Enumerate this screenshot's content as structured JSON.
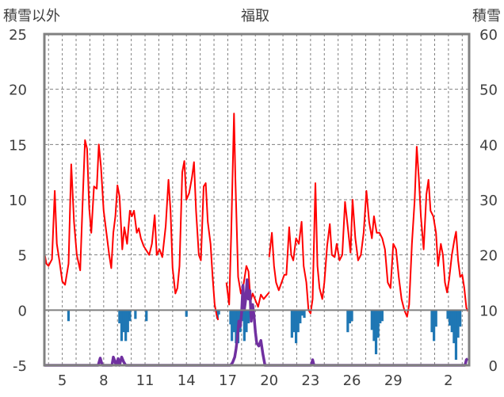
{
  "chart_data": {
    "type": "line",
    "title": "福取",
    "ylabel_left": "積雪以外",
    "ylabel_right": "積雪",
    "left_axis": {
      "min": -5,
      "max": 25,
      "ticks": [
        "25",
        "20",
        "15",
        "10",
        "5",
        "0",
        "-5"
      ],
      "tick_values": [
        25,
        20,
        15,
        10,
        5,
        0,
        -5
      ]
    },
    "right_axis": {
      "min": 0,
      "max": 60,
      "ticks": [
        "60",
        "50",
        "40",
        "30",
        "20",
        "10",
        "0"
      ],
      "tick_values": [
        60,
        50,
        40,
        30,
        20,
        10,
        0
      ]
    },
    "x_ticks": [
      "5",
      "8",
      "11",
      "14",
      "17",
      "20",
      "23",
      "26",
      "29",
      "2"
    ],
    "x_tick_days": [
      5,
      8,
      11,
      14,
      17,
      20,
      23,
      26,
      29,
      33
    ],
    "x_range": [
      3.7,
      34.5
    ],
    "grid": true,
    "colors": {
      "temperature": "#ff0000",
      "precipitation": "#1f77b4",
      "snow_depth": "#7030a0",
      "grid": "#808080",
      "frame": "#808080"
    },
    "series": [
      {
        "type": "line",
        "color": "#ff0000",
        "points": [
          [
            3.7,
            5.2
          ],
          [
            3.85,
            4.2
          ],
          [
            4.0,
            4.0
          ],
          [
            4.25,
            4.6
          ],
          [
            4.45,
            10.8
          ],
          [
            4.6,
            6.0
          ],
          [
            4.8,
            4.4
          ],
          [
            5.0,
            2.6
          ],
          [
            5.2,
            2.3
          ],
          [
            5.45,
            4.2
          ],
          [
            5.65,
            13.2
          ],
          [
            5.85,
            8.0
          ],
          [
            6.05,
            5.0
          ],
          [
            6.3,
            3.6
          ],
          [
            6.5,
            10.6
          ],
          [
            6.65,
            15.4
          ],
          [
            6.8,
            14.6
          ],
          [
            6.95,
            9.2
          ],
          [
            7.1,
            7.0
          ],
          [
            7.3,
            11.2
          ],
          [
            7.5,
            11.0
          ],
          [
            7.65,
            15.0
          ],
          [
            7.8,
            13.0
          ],
          [
            8.0,
            9.0
          ],
          [
            8.2,
            7.0
          ],
          [
            8.4,
            5.0
          ],
          [
            8.55,
            3.8
          ],
          [
            8.7,
            7.0
          ],
          [
            8.85,
            8.5
          ],
          [
            9.0,
            11.3
          ],
          [
            9.15,
            10.3
          ],
          [
            9.35,
            5.5
          ],
          [
            9.5,
            7.5
          ],
          [
            9.7,
            6.0
          ],
          [
            9.9,
            9.0
          ],
          [
            10.05,
            8.5
          ],
          [
            10.2,
            9.0
          ],
          [
            10.4,
            7.0
          ],
          [
            10.55,
            7.4
          ],
          [
            10.7,
            6.5
          ],
          [
            10.9,
            5.8
          ],
          [
            11.1,
            5.4
          ],
          [
            11.3,
            5.0
          ],
          [
            11.5,
            6.0
          ],
          [
            11.7,
            8.6
          ],
          [
            11.85,
            5.0
          ],
          [
            12.05,
            5.5
          ],
          [
            12.25,
            4.8
          ],
          [
            12.5,
            7.6
          ],
          [
            12.7,
            11.8
          ],
          [
            12.85,
            9.0
          ],
          [
            13.0,
            3.8
          ],
          [
            13.2,
            1.5
          ],
          [
            13.35,
            2.0
          ],
          [
            13.5,
            4.0
          ],
          [
            13.7,
            12.5
          ],
          [
            13.85,
            13.5
          ],
          [
            14.0,
            10.0
          ],
          [
            14.2,
            10.6
          ],
          [
            14.4,
            12.0
          ],
          [
            14.55,
            13.4
          ],
          [
            14.7,
            9.0
          ],
          [
            14.9,
            5.0
          ],
          [
            15.05,
            4.5
          ],
          [
            15.25,
            11.2
          ],
          [
            15.4,
            11.5
          ],
          [
            15.55,
            8.0
          ],
          [
            15.75,
            6.0
          ],
          [
            15.9,
            3.0
          ],
          [
            16.05,
            0.5
          ],
          [
            16.2,
            -0.5
          ],
          [
            16.3,
            -0.9
          ]
        ],
        "name": ""
      },
      {
        "type": "line",
        "color": "#ff0000",
        "points": [
          [
            16.9,
            2.5
          ],
          [
            17.1,
            0.5
          ],
          [
            17.25,
            7.0
          ],
          [
            17.45,
            17.8
          ],
          [
            17.55,
            12.0
          ],
          [
            17.75,
            3.0
          ],
          [
            17.95,
            1.5
          ],
          [
            18.15,
            2.4
          ],
          [
            18.35,
            4.0
          ],
          [
            18.5,
            3.5
          ],
          [
            18.65,
            0.8
          ],
          [
            18.8,
            1.5
          ],
          [
            19.0,
            0.9
          ],
          [
            19.2,
            0.3
          ],
          [
            19.4,
            1.4
          ],
          [
            19.6,
            1.0
          ],
          [
            19.8,
            1.3
          ],
          [
            20.0,
            1.6
          ]
        ],
        "name": ""
      },
      {
        "type": "line",
        "color": "#ff0000",
        "points": [
          [
            20.0,
            4.8
          ],
          [
            20.2,
            7.0
          ],
          [
            20.35,
            4.0
          ],
          [
            20.5,
            2.5
          ],
          [
            20.7,
            1.8
          ],
          [
            20.9,
            2.5
          ],
          [
            21.1,
            3.2
          ],
          [
            21.25,
            3.2
          ],
          [
            21.45,
            7.5
          ],
          [
            21.6,
            5.0
          ],
          [
            21.75,
            4.5
          ],
          [
            21.95,
            6.5
          ],
          [
            22.15,
            6.0
          ],
          [
            22.35,
            8.0
          ],
          [
            22.5,
            4.0
          ],
          [
            22.7,
            2.5
          ],
          [
            22.85,
            0.0
          ],
          [
            23.0,
            -0.3
          ],
          [
            23.15,
            1.0
          ],
          [
            23.35,
            11.5
          ],
          [
            23.5,
            4.0
          ],
          [
            23.65,
            2.0
          ],
          [
            23.85,
            1.0
          ],
          [
            24.0,
            2.5
          ],
          [
            24.2,
            5.8
          ],
          [
            24.4,
            7.8
          ],
          [
            24.55,
            5.0
          ],
          [
            24.75,
            4.8
          ],
          [
            24.9,
            6.0
          ],
          [
            25.1,
            4.5
          ],
          [
            25.3,
            5.0
          ],
          [
            25.5,
            9.8
          ],
          [
            25.7,
            7.5
          ],
          [
            25.9,
            5.2
          ],
          [
            26.05,
            10.0
          ],
          [
            26.25,
            6.5
          ],
          [
            26.45,
            4.5
          ],
          [
            26.65,
            5.0
          ],
          [
            26.85,
            7.0
          ],
          [
            27.05,
            10.8
          ],
          [
            27.25,
            8.0
          ],
          [
            27.45,
            6.5
          ],
          [
            27.6,
            8.5
          ],
          [
            27.8,
            7.0
          ],
          [
            28.0,
            7.0
          ],
          [
            28.2,
            6.5
          ],
          [
            28.4,
            5.5
          ],
          [
            28.6,
            2.5
          ],
          [
            28.8,
            2.0
          ],
          [
            29.0,
            6.0
          ],
          [
            29.2,
            5.5
          ],
          [
            29.4,
            3.0
          ],
          [
            29.6,
            1.0
          ],
          [
            29.8,
            0.0
          ],
          [
            30.0,
            -0.6
          ],
          [
            30.15,
            0.5
          ],
          [
            30.35,
            6.0
          ],
          [
            30.55,
            10.0
          ],
          [
            30.7,
            14.8
          ],
          [
            30.85,
            12.0
          ],
          [
            31.0,
            8.5
          ],
          [
            31.2,
            5.5
          ],
          [
            31.4,
            10.5
          ],
          [
            31.55,
            11.8
          ],
          [
            31.7,
            9.0
          ],
          [
            31.9,
            8.5
          ],
          [
            32.1,
            7.0
          ],
          [
            32.25,
            4.0
          ],
          [
            32.45,
            6.0
          ],
          [
            32.6,
            5.0
          ],
          [
            32.75,
            2.5
          ],
          [
            32.9,
            1.6
          ],
          [
            33.05,
            2.8
          ],
          [
            33.25,
            5.0
          ],
          [
            33.45,
            6.5
          ],
          [
            33.55,
            7.1
          ],
          [
            33.7,
            4.5
          ],
          [
            33.85,
            3.0
          ],
          [
            34.0,
            3.2
          ],
          [
            34.15,
            2.0
          ],
          [
            34.3,
            0.2
          ],
          [
            34.4,
            -0.1
          ]
        ],
        "name": ""
      },
      {
        "type": "bar",
        "color": "#1f77b4",
        "bars": [
          [
            5.45,
            -1.0
          ],
          [
            9.15,
            -1.2
          ],
          [
            9.3,
            -2.8
          ],
          [
            9.45,
            -2.0
          ],
          [
            9.6,
            -2.8
          ],
          [
            9.75,
            -2.0
          ],
          [
            9.9,
            -1.0
          ],
          [
            10.3,
            -0.8
          ],
          [
            11.1,
            -1.0
          ],
          [
            14.0,
            -0.6
          ],
          [
            16.25,
            -0.8
          ],
          [
            16.35,
            -0.4
          ],
          [
            17.2,
            -1.3
          ],
          [
            17.3,
            -2.8
          ],
          [
            17.45,
            -2.0
          ],
          [
            17.6,
            -3.0
          ],
          [
            17.75,
            -3.0
          ],
          [
            17.9,
            -2.0
          ],
          [
            18.05,
            -1.0
          ],
          [
            18.2,
            -2.8
          ],
          [
            18.35,
            -2.0
          ],
          [
            18.5,
            -1.2
          ],
          [
            18.65,
            -0.6
          ],
          [
            21.65,
            -2.5
          ],
          [
            21.8,
            -2.0
          ],
          [
            21.95,
            -3.0
          ],
          [
            22.1,
            -2.0
          ],
          [
            22.25,
            -1.2
          ],
          [
            22.4,
            -0.5
          ],
          [
            22.55,
            -0.7
          ],
          [
            25.7,
            -2.0
          ],
          [
            25.85,
            -1.2
          ],
          [
            26.0,
            -1.0
          ],
          [
            27.45,
            -1.8
          ],
          [
            27.6,
            -2.8
          ],
          [
            27.75,
            -4.0
          ],
          [
            27.9,
            -2.5
          ],
          [
            28.05,
            -1.2
          ],
          [
            28.2,
            -1.0
          ],
          [
            31.8,
            -2.0
          ],
          [
            31.95,
            -2.8
          ],
          [
            32.1,
            -1.5
          ],
          [
            32.95,
            -0.8
          ],
          [
            33.1,
            -1.4
          ],
          [
            33.25,
            -2.0
          ],
          [
            33.4,
            -3.0
          ],
          [
            33.55,
            -4.5
          ],
          [
            33.7,
            -2.5
          ],
          [
            33.85,
            -1.5
          ]
        ],
        "name": ""
      },
      {
        "type": "line",
        "color": "#7030a0",
        "points": [
          [
            3.7,
            0
          ],
          [
            7.6,
            0
          ],
          [
            7.75,
            1.3
          ],
          [
            7.9,
            0
          ],
          [
            8.6,
            0
          ],
          [
            8.7,
            1.5
          ],
          [
            8.8,
            0.8
          ],
          [
            8.9,
            0
          ],
          [
            9.05,
            1.2
          ],
          [
            9.15,
            0
          ],
          [
            9.3,
            1.5
          ],
          [
            9.45,
            0.6
          ],
          [
            9.6,
            0
          ],
          [
            17.2,
            0
          ],
          [
            17.35,
            0.5
          ],
          [
            17.5,
            1.5
          ],
          [
            17.6,
            3.0
          ],
          [
            17.7,
            5.0
          ],
          [
            17.8,
            8.0
          ],
          [
            17.9,
            7.0
          ],
          [
            18.0,
            9.5
          ],
          [
            18.1,
            14.5
          ],
          [
            18.2,
            10.0
          ],
          [
            18.3,
            12.0
          ],
          [
            18.4,
            15.5
          ],
          [
            18.5,
            12.0
          ],
          [
            18.6,
            13.5
          ],
          [
            18.7,
            8.0
          ],
          [
            18.8,
            11.0
          ],
          [
            18.9,
            9.0
          ],
          [
            19.0,
            6.0
          ],
          [
            19.1,
            4.0
          ],
          [
            19.25,
            3.5
          ],
          [
            19.4,
            4.5
          ],
          [
            19.55,
            2.0
          ],
          [
            19.7,
            0
          ],
          [
            23.05,
            0
          ],
          [
            23.15,
            1.0
          ],
          [
            23.25,
            0
          ],
          [
            34.2,
            0
          ],
          [
            34.3,
            1.0
          ],
          [
            34.4,
            1.2
          ]
        ],
        "name": ""
      }
    ]
  }
}
